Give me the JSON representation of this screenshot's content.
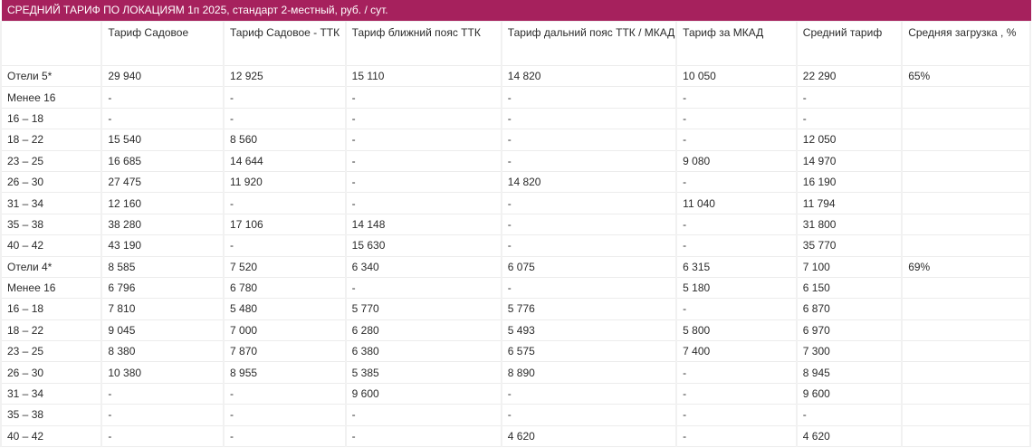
{
  "header": {
    "title": "СРЕДНИЙ ТАРИФ ПО ЛОКАЦИЯМ 1п 2025, стандарт 2-местный,  руб. / сут."
  },
  "table": {
    "columns": [
      "Тариф Садовое",
      "Тариф Садовое - ТТК",
      "Тариф ближний пояс ТТК",
      "Тариф дальний пояс ТТК / МКАД",
      "Тариф за  МКАД",
      "Средний тариф",
      "Средняя загрузка , %"
    ],
    "rows": [
      [
        "Отели 5*",
        "29 940",
        "12 925",
        "15 110",
        "14 820",
        "10 050",
        "22 290",
        "65%"
      ],
      [
        "Менее 16",
        "-",
        "-",
        "-",
        "-",
        "-",
        "-"
      ],
      [
        "16 – 18",
        "-",
        "-",
        "-",
        "-",
        "-",
        "-"
      ],
      [
        "18 – 22",
        "15 540",
        "8 560",
        "-",
        "-",
        "-",
        "12 050"
      ],
      [
        "23 – 25",
        "16 685",
        "14 644",
        "-",
        "-",
        "9 080",
        "14 970"
      ],
      [
        "26 – 30",
        "27 475",
        "11 920",
        "-",
        "14 820",
        "-",
        "16 190"
      ],
      [
        "31 – 34",
        "12 160",
        "-",
        "-",
        "-",
        "11 040",
        "11 794"
      ],
      [
        "35 – 38",
        "38 280",
        "17 106",
        "14 148",
        "-",
        "-",
        "31 800"
      ],
      [
        "40 – 42",
        "43 190",
        "-",
        "15 630",
        "-",
        "-",
        "35 770"
      ],
      [
        "Отели 4*",
        "8 585",
        "7 520",
        "6 340",
        "6 075",
        "6 315",
        "7 100",
        "69%"
      ],
      [
        "Менее 16",
        "6 796",
        "6 780",
        "-",
        "-",
        "5 180",
        "6 150"
      ],
      [
        "16 – 18",
        "7 810",
        "5 480",
        "5 770",
        "5 776",
        "-",
        "6 870"
      ],
      [
        "18 – 22",
        "9 045",
        "7 000",
        "6 280",
        "5 493",
        "5 800",
        "6 970"
      ],
      [
        "23 – 25",
        "8 380",
        "7 870",
        "6 380",
        "6 575",
        "7 400",
        "7 300"
      ],
      [
        "26 – 30",
        "10 380",
        "8 955",
        "5 385",
        "8 890",
        "-",
        "8 945"
      ],
      [
        "31 – 34",
        "-",
        "-",
        "9 600",
        "-",
        "-",
        "9 600"
      ],
      [
        "35 – 38",
        "-",
        "-",
        "-",
        "-",
        "-",
        "-"
      ],
      [
        "40 – 42",
        "-",
        "-",
        "-",
        "4 620",
        "-",
        "4 620"
      ]
    ]
  }
}
